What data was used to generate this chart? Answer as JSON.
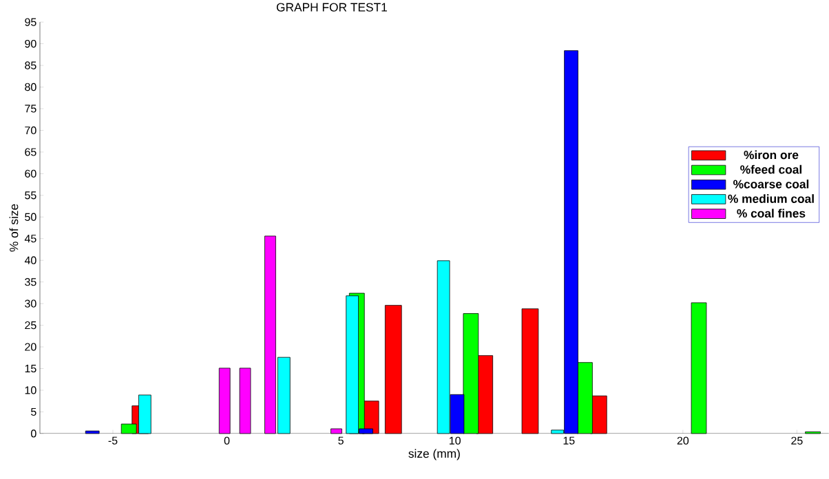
{
  "chart_data": {
    "type": "bar",
    "title": "GRAPH FOR TEST1",
    "xlabel": "size (mm)",
    "ylabel": "% of size",
    "xlim": [
      -8.2,
      26.4
    ],
    "ylim": [
      0,
      95
    ],
    "xticks": [
      -5,
      0,
      5,
      10,
      15,
      20,
      25
    ],
    "yticks": [
      0,
      5,
      10,
      15,
      20,
      25,
      30,
      35,
      40,
      45,
      50,
      55,
      60,
      65,
      70,
      75,
      80,
      85,
      90,
      95
    ],
    "grid": false,
    "legend": "right",
    "series": [
      {
        "name": "%iron ore",
        "color": "#ff0000",
        "x": [
          -3.8,
          6.3,
          7.3,
          11.3,
          13.3,
          16.3
        ],
        "values": [
          6.4,
          7.5,
          29.6,
          18.0,
          28.8,
          8.7
        ]
      },
      {
        "name": "%feed coal",
        "color": "#00ff00",
        "x": [
          -4.3,
          5.7,
          10.7,
          15.7,
          20.7,
          25.7
        ],
        "values": [
          2.2,
          32.4,
          27.7,
          16.4,
          30.2,
          0.4
        ]
      },
      {
        "name": "%coarse coal",
        "color": "#0000ff",
        "x": [
          -5.9,
          6.1,
          10.1,
          15.1
        ],
        "values": [
          0.6,
          1.1,
          9.0,
          88.4
        ]
      },
      {
        "name": "% medium coal",
        "color": "#00ffff",
        "x": [
          -3.6,
          2.5,
          5.5,
          9.5,
          14.5
        ],
        "values": [
          8.9,
          17.6,
          31.8,
          39.9,
          0.8
        ]
      },
      {
        "name": "% coal fines",
        "color": "#ff00ff",
        "x": [
          -0.1,
          0.8,
          1.9,
          4.8
        ],
        "values": [
          15.1,
          15.1,
          45.6,
          1.1
        ]
      }
    ]
  }
}
